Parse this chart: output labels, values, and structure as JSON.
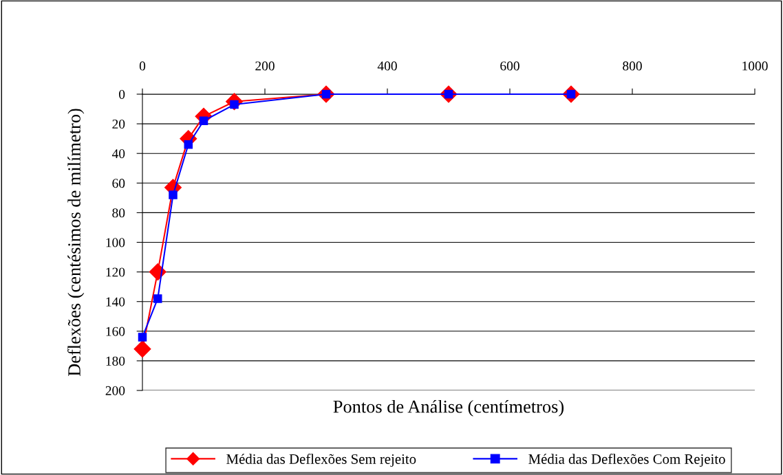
{
  "chart_data": {
    "type": "line",
    "xlabel": "Pontos de Análise (centímetros)",
    "ylabel": "Deflexões (centésimos de milímetro)",
    "xlim": [
      0,
      1000
    ],
    "xticks": [
      0,
      200,
      400,
      600,
      800,
      1000
    ],
    "ylim": [
      200,
      0
    ],
    "yticks": [
      0,
      20,
      40,
      60,
      80,
      100,
      120,
      140,
      160,
      180,
      200
    ],
    "grid": "y",
    "legend": "bottom",
    "x": [
      0,
      25,
      50,
      75,
      100,
      150,
      300,
      500,
      700
    ],
    "series": [
      {
        "name": "Média das Deflexões Sem rejeito",
        "color": "#ff0000",
        "marker": "diamond",
        "values": [
          172,
          120,
          63,
          30,
          15,
          5,
          0,
          0,
          0
        ]
      },
      {
        "name": "Média das Deflexões Com Rejeito",
        "color": "#0000ff",
        "marker": "square",
        "values": [
          164,
          138,
          68,
          34,
          18,
          7,
          0,
          0,
          0
        ]
      }
    ]
  }
}
